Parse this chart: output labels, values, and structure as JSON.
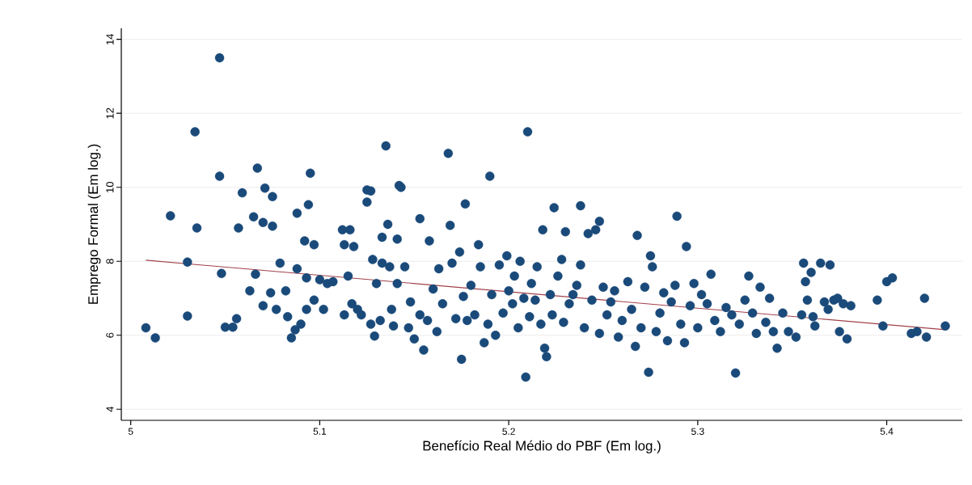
{
  "chart_data": {
    "type": "scatter",
    "xlabel": "Benefício Real Médio do PBF (Em log.)",
    "ylabel": "Emprego Formal (Em log.)",
    "xlim": [
      4.995,
      5.44
    ],
    "ylim": [
      3.7,
      14.3
    ],
    "xticks": [
      5,
      5.1,
      5.2,
      5.3,
      5.4
    ],
    "yticks": [
      4,
      6,
      8,
      10,
      12,
      14
    ],
    "grid": "y",
    "marker": "circle",
    "series": [
      {
        "color": "#1a4a7a",
        "x": [
          5.008,
          5.013,
          5.021,
          5.03,
          5.03,
          5.034,
          5.035,
          5.047,
          5.047,
          5.048,
          5.05,
          5.054,
          5.056,
          5.057,
          5.059,
          5.063,
          5.065,
          5.067,
          5.066,
          5.07,
          5.071,
          5.07,
          5.074,
          5.075,
          5.075,
          5.077,
          5.079,
          5.082,
          5.083,
          5.085,
          5.087,
          5.088,
          5.088,
          5.09,
          5.092,
          5.093,
          5.093,
          5.094,
          5.095,
          5.097,
          5.097,
          5.1,
          5.102,
          5.104,
          5.107,
          5.112,
          5.113,
          5.113,
          5.115,
          5.116,
          5.118,
          5.117,
          5.12,
          5.122,
          5.125,
          5.125,
          5.127,
          5.127,
          5.128,
          5.129,
          5.13,
          5.132,
          5.133,
          5.133,
          5.135,
          5.136,
          5.137,
          5.138,
          5.139,
          5.142,
          5.143,
          5.141,
          5.141,
          5.145,
          5.147,
          5.148,
          5.15,
          5.153,
          5.153,
          5.155,
          5.157,
          5.158,
          5.16,
          5.162,
          5.163,
          5.165,
          5.168,
          5.169,
          5.17,
          5.172,
          5.174,
          5.175,
          5.176,
          5.177,
          5.178,
          5.18,
          5.182,
          5.184,
          5.185,
          5.187,
          5.189,
          5.19,
          5.191,
          5.193,
          5.195,
          5.197,
          5.199,
          5.2,
          5.202,
          5.203,
          5.205,
          5.206,
          5.208,
          5.209,
          5.21,
          5.211,
          5.212,
          5.214,
          5.215,
          5.217,
          5.218,
          5.219,
          5.22,
          5.222,
          5.223,
          5.224,
          5.226,
          5.228,
          5.229,
          5.23,
          5.232,
          5.234,
          5.236,
          5.238,
          5.238,
          5.24,
          5.242,
          5.244,
          5.246,
          5.248,
          5.248,
          5.25,
          5.252,
          5.254,
          5.256,
          5.258,
          5.26,
          5.263,
          5.265,
          5.267,
          5.268,
          5.27,
          5.272,
          5.274,
          5.275,
          5.276,
          5.278,
          5.28,
          5.282,
          5.284,
          5.286,
          5.288,
          5.289,
          5.291,
          5.293,
          5.294,
          5.296,
          5.298,
          5.3,
          5.302,
          5.305,
          5.307,
          5.309,
          5.312,
          5.315,
          5.318,
          5.32,
          5.322,
          5.325,
          5.327,
          5.329,
          5.331,
          5.333,
          5.336,
          5.338,
          5.34,
          5.342,
          5.345,
          5.348,
          5.352,
          5.355,
          5.356,
          5.357,
          5.358,
          5.36,
          5.361,
          5.362,
          5.365,
          5.367,
          5.369,
          5.37,
          5.372,
          5.374,
          5.375,
          5.377,
          5.379,
          5.381,
          5.395,
          5.398,
          5.4,
          5.403,
          5.413,
          5.416,
          5.42,
          5.421,
          5.431
        ],
        "values": [
          6.2,
          5.93,
          9.23,
          7.98,
          6.52,
          11.5,
          8.9,
          13.5,
          10.3,
          7.67,
          6.22,
          6.22,
          6.45,
          8.9,
          9.85,
          7.2,
          9.2,
          10.52,
          7.65,
          9.05,
          9.98,
          6.8,
          7.15,
          9.75,
          8.95,
          6.7,
          7.95,
          7.2,
          6.5,
          5.93,
          6.15,
          7.8,
          9.3,
          6.3,
          8.55,
          7.55,
          6.7,
          9.53,
          10.38,
          6.95,
          8.45,
          7.5,
          6.7,
          7.4,
          7.45,
          8.85,
          8.45,
          6.55,
          7.6,
          8.85,
          8.4,
          6.85,
          6.7,
          6.55,
          9.6,
          9.93,
          9.9,
          6.3,
          8.05,
          5.98,
          7.4,
          6.4,
          7.95,
          8.65,
          11.12,
          9.0,
          7.85,
          6.7,
          6.25,
          10.05,
          10.0,
          8.6,
          7.4,
          7.85,
          6.2,
          6.9,
          5.9,
          9.15,
          6.55,
          5.6,
          6.4,
          8.55,
          7.25,
          6.1,
          7.8,
          6.85,
          10.92,
          8.97,
          7.95,
          6.45,
          8.25,
          5.35,
          7.05,
          9.55,
          6.4,
          7.35,
          6.55,
          8.45,
          7.85,
          5.8,
          6.3,
          10.3,
          7.1,
          6.0,
          7.9,
          6.6,
          8.15,
          7.2,
          6.85,
          7.6,
          6.2,
          8.0,
          7.0,
          4.87,
          11.5,
          6.5,
          7.4,
          6.95,
          7.85,
          6.3,
          8.85,
          5.65,
          5.42,
          7.1,
          6.55,
          9.45,
          7.6,
          8.05,
          6.35,
          8.8,
          6.85,
          7.1,
          7.35,
          9.5,
          7.9,
          6.2,
          8.75,
          6.95,
          8.85,
          9.08,
          6.05,
          7.3,
          6.55,
          6.9,
          7.2,
          5.95,
          6.4,
          7.45,
          6.7,
          5.7,
          8.7,
          6.2,
          7.3,
          5.0,
          8.15,
          7.85,
          6.1,
          6.6,
          7.15,
          5.85,
          6.9,
          7.35,
          9.22,
          6.3,
          5.8,
          8.4,
          6.8,
          7.4,
          6.2,
          7.1,
          6.85,
          7.65,
          6.4,
          6.1,
          6.75,
          6.55,
          4.98,
          6.3,
          6.95,
          7.6,
          6.6,
          6.05,
          7.3,
          6.35,
          7.0,
          6.1,
          5.65,
          6.6,
          6.1,
          5.95,
          6.55,
          7.95,
          7.45,
          6.95,
          7.7,
          6.5,
          6.25,
          7.95,
          6.9,
          6.7,
          7.9,
          6.95,
          7.0,
          6.1,
          6.85,
          5.9,
          6.8,
          6.95,
          6.25,
          7.45,
          7.55,
          6.05,
          6.1,
          7.0,
          5.95,
          6.25
        ]
      },
      {
        "type": "line",
        "marker": "none",
        "color": "#a0404a",
        "x": [
          5.008,
          5.431
        ],
        "values": [
          8.03,
          6.15
        ]
      }
    ]
  }
}
